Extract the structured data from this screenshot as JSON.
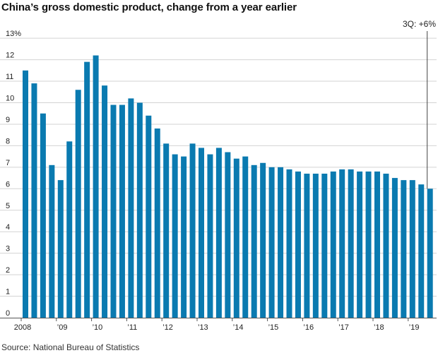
{
  "title": "China’s gross domestic product, change from a year earlier",
  "source": "Source: National Bureau of Statistics",
  "colors": {
    "bar": "#0a7ab0",
    "grid": "#d3d3d3",
    "axis": "#555555",
    "annotation_line": "#444444"
  },
  "chart_data": {
    "type": "bar",
    "title": "China’s gross domestic product, change from a year earlier",
    "xlabel": "",
    "ylabel": "",
    "ylim": [
      0,
      13
    ],
    "y_ticks": [
      "0",
      "1",
      "2",
      "3",
      "4",
      "5",
      "6",
      "7",
      "8",
      "9",
      "10",
      "11",
      "12",
      "13%"
    ],
    "x_tick_labels": [
      {
        "label": "2008",
        "index": 0
      },
      {
        "label": "’09",
        "index": 4
      },
      {
        "label": "’10",
        "index": 8
      },
      {
        "label": "’11",
        "index": 12
      },
      {
        "label": "’12",
        "index": 16
      },
      {
        "label": "’13",
        "index": 20
      },
      {
        "label": "’14",
        "index": 24
      },
      {
        "label": "’15",
        "index": 28
      },
      {
        "label": "’16",
        "index": 32
      },
      {
        "label": "’17",
        "index": 36
      },
      {
        "label": "’18",
        "index": 40
      },
      {
        "label": "’19",
        "index": 44
      }
    ],
    "categories": [
      "2008 Q1",
      "2008 Q2",
      "2008 Q3",
      "2008 Q4",
      "2009 Q1",
      "2009 Q2",
      "2009 Q3",
      "2009 Q4",
      "2010 Q1",
      "2010 Q2",
      "2010 Q3",
      "2010 Q4",
      "2011 Q1",
      "2011 Q2",
      "2011 Q3",
      "2011 Q4",
      "2012 Q1",
      "2012 Q2",
      "2012 Q3",
      "2012 Q4",
      "2013 Q1",
      "2013 Q2",
      "2013 Q3",
      "2013 Q4",
      "2014 Q1",
      "2014 Q2",
      "2014 Q3",
      "2014 Q4",
      "2015 Q1",
      "2015 Q2",
      "2015 Q3",
      "2015 Q4",
      "2016 Q1",
      "2016 Q2",
      "2016 Q3",
      "2016 Q4",
      "2017 Q1",
      "2017 Q2",
      "2017 Q3",
      "2017 Q4",
      "2018 Q1",
      "2018 Q2",
      "2018 Q3",
      "2018 Q4",
      "2019 Q1",
      "2019 Q2",
      "2019 Q3"
    ],
    "values": [
      11.5,
      10.9,
      9.5,
      7.1,
      6.4,
      8.2,
      10.6,
      11.9,
      12.2,
      10.8,
      9.9,
      9.9,
      10.2,
      10.0,
      9.4,
      8.8,
      8.1,
      7.6,
      7.5,
      8.1,
      7.9,
      7.6,
      7.9,
      7.7,
      7.4,
      7.5,
      7.1,
      7.2,
      7.0,
      7.0,
      6.9,
      6.8,
      6.7,
      6.7,
      6.7,
      6.8,
      6.9,
      6.9,
      6.8,
      6.8,
      6.8,
      6.7,
      6.5,
      6.4,
      6.4,
      6.2,
      6.0
    ],
    "annotation": {
      "text": "3Q: +6%",
      "index": 46
    },
    "grid": true
  }
}
